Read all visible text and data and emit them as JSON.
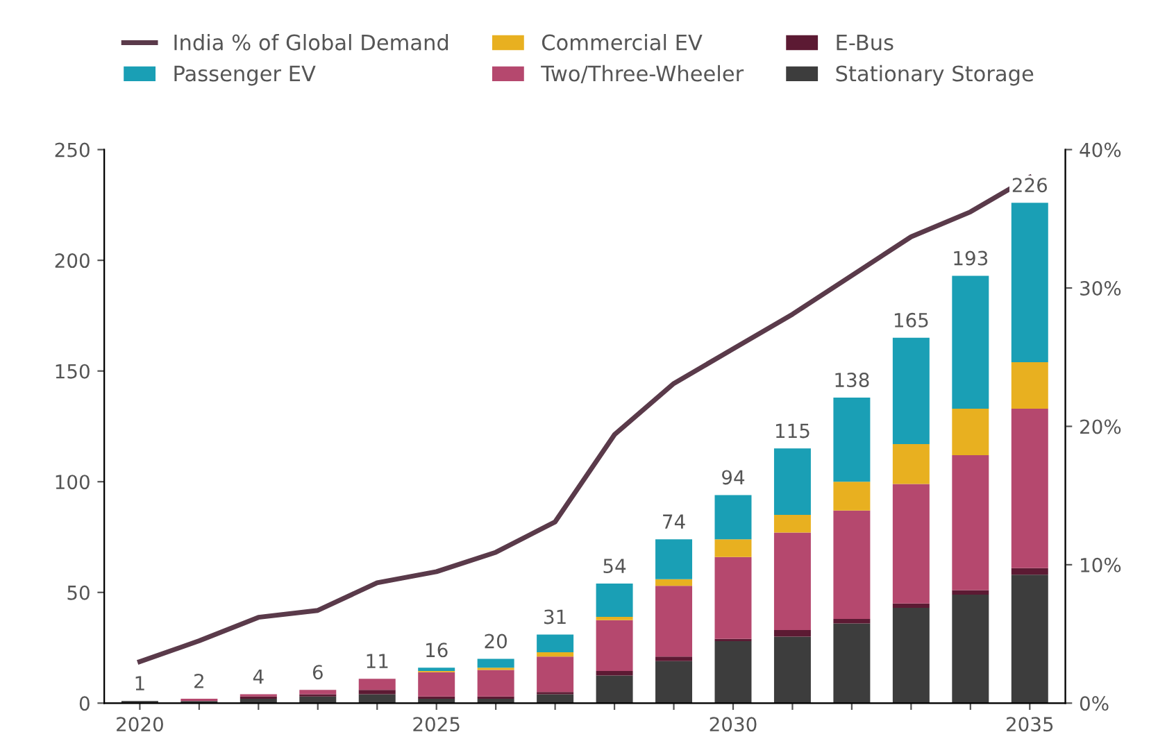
{
  "chart_data": {
    "type": "bar",
    "stacked": true,
    "categories": [
      "2020",
      null,
      null,
      null,
      null,
      "2025",
      null,
      null,
      null,
      null,
      "2030",
      null,
      null,
      null,
      null,
      "2035"
    ],
    "series": [
      {
        "name": "Stationary Storage",
        "color": "#3d3d3d",
        "values": [
          1,
          1,
          2,
          3,
          4,
          2,
          2,
          4,
          12.5,
          19,
          28,
          30,
          36,
          43,
          49,
          58
        ]
      },
      {
        "name": "E-Bus",
        "color": "#5c1a33",
        "values": [
          0,
          0,
          1,
          1,
          2,
          1,
          1,
          1,
          2,
          2,
          1,
          3,
          2,
          2,
          2,
          3
        ]
      },
      {
        "name": "Two/Three-Wheeler",
        "color": "#b5486e",
        "values": [
          0,
          1,
          1,
          2,
          5,
          11,
          12,
          16,
          23,
          32,
          37,
          44,
          49,
          54,
          61,
          72
        ]
      },
      {
        "name": "Commercial EV",
        "color": "#e8b020",
        "values": [
          0,
          0,
          0,
          0,
          0,
          0.5,
          1,
          2,
          1.5,
          3,
          8,
          8,
          13,
          18,
          21,
          21
        ]
      },
      {
        "name": "Passenger EV",
        "color": "#1a9fb5",
        "values": [
          0,
          0,
          0,
          0,
          0,
          1.5,
          4,
          8,
          15,
          18,
          20,
          30,
          38,
          48,
          60,
          72
        ]
      },
      {
        "name": "India % of Global Demand",
        "type": "line",
        "axis": "y2",
        "color": "#5a3a4a",
        "values": [
          3,
          4.5,
          6.2,
          6.7,
          8.7,
          9.5,
          10.9,
          13.1,
          19.4,
          23.1,
          25.6,
          28.1,
          30.9,
          33.7,
          35.5,
          38
        ]
      }
    ],
    "totals": [
      "1",
      "2",
      "4",
      "6",
      "11",
      "16",
      "20",
      "31",
      "54",
      "74",
      "94",
      "115",
      "138",
      "165",
      "193",
      "226"
    ],
    "ylim": [
      0,
      250
    ],
    "yticks": [
      0,
      50,
      100,
      150,
      200,
      250
    ],
    "y2lim": [
      0,
      40
    ],
    "y2ticks": [
      {
        "value": 0,
        "label": "0%"
      },
      {
        "value": 10,
        "label": "10%"
      },
      {
        "value": 20,
        "label": "20%"
      },
      {
        "value": 30,
        "label": "30%"
      },
      {
        "value": 40,
        "label": "40%"
      }
    ],
    "legend": "top",
    "grid": false
  }
}
